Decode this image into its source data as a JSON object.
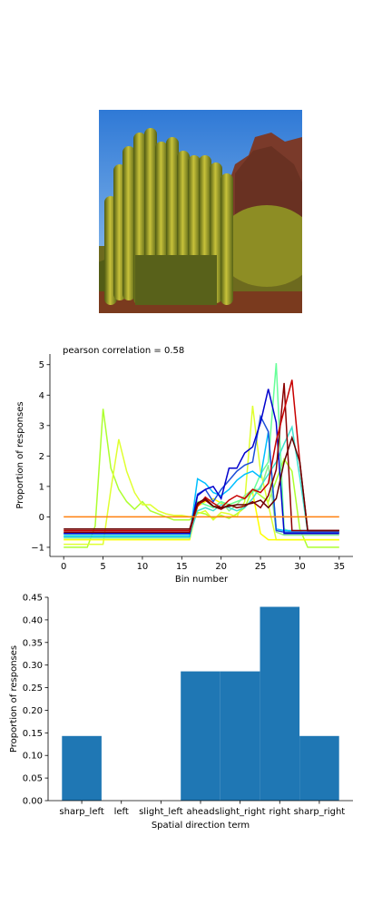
{
  "image": {
    "subject": "organ-pipe-cactus-photo"
  },
  "chart_data": [
    {
      "type": "line",
      "title": "pearson correlation = 0.58",
      "xlabel": "Bin number",
      "ylabel": "Proportion of responses",
      "xlim": [
        -1.75,
        36.75
      ],
      "ylim": [
        -1.3,
        5.35
      ],
      "xticks": [
        0,
        5,
        10,
        15,
        20,
        25,
        30,
        35
      ],
      "yticks": [
        -1,
        0,
        1,
        2,
        3,
        4,
        5
      ],
      "grid": false,
      "legend": "none",
      "x": [
        0,
        1,
        2,
        3,
        4,
        5,
        6,
        7,
        8,
        9,
        10,
        11,
        12,
        13,
        14,
        15,
        16,
        17,
        18,
        19,
        20,
        21,
        22,
        23,
        24,
        25,
        26,
        27,
        28,
        29,
        30,
        31,
        32,
        33,
        34,
        35
      ],
      "series": [
        {
          "color": "#adff2f",
          "values": [
            -1,
            -1,
            -1,
            -1,
            -0.3,
            3.55,
            1.6,
            0.9,
            0.5,
            0.25,
            0.5,
            0.2,
            0.1,
            0,
            -0.1,
            -0.1,
            -0.1,
            0.15,
            0.1,
            -0.05,
            0.05,
            -0.05,
            0.1,
            0.3,
            0.9,
            0.7,
            0.5,
            1.2,
            1.9,
            1.5,
            -0.4,
            -1,
            -1,
            -1,
            -1,
            -1
          ]
        },
        {
          "color": "#e0ff30",
          "values": [
            -0.9,
            -0.9,
            -0.9,
            -0.9,
            -0.9,
            -0.9,
            0.9,
            2.55,
            1.5,
            0.8,
            0.4,
            0.4,
            0.2,
            0.1,
            0.05,
            0.05,
            0,
            0.1,
            0.2,
            -0.1,
            0.15,
            0.1,
            0,
            0.5,
            3.65,
            1.5,
            0.4,
            -0.75,
            -0.75,
            -0.75,
            -0.75,
            -0.75,
            -0.75,
            -0.75,
            -0.75,
            -0.75
          ]
        },
        {
          "color": "#ffff00",
          "values": [
            -0.75,
            -0.75,
            -0.75,
            -0.75,
            -0.75,
            -0.75,
            -0.75,
            -0.75,
            -0.75,
            -0.75,
            -0.75,
            -0.75,
            -0.75,
            -0.75,
            -0.75,
            -0.75,
            -0.75,
            0.35,
            0.5,
            0.6,
            0.45,
            0.4,
            0.5,
            0.6,
            0.8,
            -0.55,
            -0.75,
            -0.75,
            -0.75,
            -0.75,
            -0.75,
            -0.75,
            -0.75,
            -0.75,
            -0.75,
            -0.75
          ]
        },
        {
          "color": "#90ee90",
          "values": [
            -0.7,
            -0.7,
            -0.7,
            -0.7,
            -0.7,
            -0.7,
            -0.7,
            -0.7,
            -0.7,
            -0.7,
            -0.7,
            -0.7,
            -0.7,
            -0.7,
            -0.7,
            -0.7,
            -0.7,
            0.4,
            0.6,
            0.3,
            0.5,
            0.2,
            0.4,
            0.7,
            0.9,
            0.9,
            1.7,
            -0.5,
            -0.6,
            -0.6,
            -0.6,
            -0.6,
            -0.6,
            -0.6,
            -0.6,
            -0.6
          ]
        },
        {
          "color": "#66ff99",
          "values": [
            -0.65,
            -0.65,
            -0.65,
            -0.65,
            -0.65,
            -0.65,
            -0.65,
            -0.65,
            -0.65,
            -0.65,
            -0.65,
            -0.65,
            -0.65,
            -0.65,
            -0.65,
            -0.65,
            -0.65,
            0.5,
            0.4,
            0.3,
            0.5,
            0.4,
            0.5,
            0.6,
            0.8,
            1.4,
            1.8,
            5.05,
            -0.4,
            -0.5,
            -0.5,
            -0.5,
            -0.5,
            -0.5,
            -0.5,
            -0.5
          ]
        },
        {
          "color": "#40e0d0",
          "values": [
            -0.6,
            -0.6,
            -0.6,
            -0.6,
            -0.6,
            -0.6,
            -0.6,
            -0.6,
            -0.6,
            -0.6,
            -0.6,
            -0.6,
            -0.6,
            -0.6,
            -0.6,
            -0.6,
            -0.6,
            0.2,
            0.3,
            0.2,
            0.4,
            0.3,
            0.2,
            0.3,
            0.6,
            1,
            1.4,
            1.8,
            2.4,
            2.95,
            1.3,
            -0.5,
            -0.5,
            -0.5,
            -0.5,
            -0.5
          ]
        },
        {
          "color": "#00bfff",
          "values": [
            -0.65,
            -0.65,
            -0.65,
            -0.65,
            -0.65,
            -0.65,
            -0.65,
            -0.65,
            -0.65,
            -0.65,
            -0.65,
            -0.65,
            -0.65,
            -0.65,
            -0.65,
            -0.65,
            -0.65,
            1.25,
            1.1,
            0.8,
            0.7,
            0.9,
            1.2,
            1.4,
            1.5,
            1.3,
            2.8,
            -0.4,
            -0.45,
            -0.45,
            -0.45,
            -0.45,
            -0.45,
            -0.45,
            -0.45,
            -0.45
          ]
        },
        {
          "color": "#1e4fd8",
          "values": [
            -0.55,
            -0.55,
            -0.55,
            -0.55,
            -0.55,
            -0.55,
            -0.55,
            -0.55,
            -0.55,
            -0.55,
            -0.55,
            -0.55,
            -0.55,
            -0.55,
            -0.55,
            -0.55,
            -0.55,
            0.75,
            0.9,
            0.5,
            0.9,
            1.2,
            1.5,
            1.7,
            1.8,
            3.3,
            2.8,
            -0.45,
            -0.5,
            -0.5,
            -0.5,
            -0.5,
            -0.5,
            -0.5,
            -0.5,
            -0.5
          ]
        },
        {
          "color": "#0000cd",
          "values": [
            -0.55,
            -0.55,
            -0.55,
            -0.55,
            -0.55,
            -0.55,
            -0.55,
            -0.55,
            -0.55,
            -0.55,
            -0.55,
            -0.55,
            -0.55,
            -0.55,
            -0.55,
            -0.55,
            -0.55,
            0.7,
            0.9,
            1,
            0.6,
            1.6,
            1.6,
            2.1,
            2.3,
            3.1,
            4.2,
            3.1,
            -0.55,
            -0.55,
            -0.55,
            -0.55,
            -0.55,
            -0.55,
            -0.55,
            -0.55
          ]
        },
        {
          "color": "#8b0000",
          "values": [
            -0.5,
            -0.5,
            -0.5,
            -0.5,
            -0.5,
            -0.5,
            -0.5,
            -0.5,
            -0.5,
            -0.5,
            -0.5,
            -0.5,
            -0.5,
            -0.5,
            -0.5,
            -0.5,
            -0.5,
            0.4,
            0.55,
            0.35,
            0.25,
            0.4,
            0.3,
            0.35,
            0.5,
            0.3,
            0.7,
            1.55,
            4.4,
            -0.45,
            -0.45,
            -0.45,
            -0.45,
            -0.45,
            -0.45,
            -0.45
          ]
        },
        {
          "color": "#c80000",
          "values": [
            -0.45,
            -0.45,
            -0.45,
            -0.45,
            -0.45,
            -0.45,
            -0.45,
            -0.45,
            -0.45,
            -0.45,
            -0.45,
            -0.45,
            -0.45,
            -0.45,
            -0.45,
            -0.45,
            -0.45,
            0.35,
            0.65,
            0.45,
            0.3,
            0.55,
            0.7,
            0.6,
            0.9,
            0.8,
            1.1,
            2.5,
            3.5,
            4.5,
            1.8,
            -0.45,
            -0.45,
            -0.45,
            -0.45,
            -0.45
          ]
        },
        {
          "color": "#660000",
          "values": [
            -0.4,
            -0.4,
            -0.4,
            -0.4,
            -0.4,
            -0.4,
            -0.4,
            -0.4,
            -0.4,
            -0.4,
            -0.4,
            -0.4,
            -0.4,
            -0.4,
            -0.4,
            -0.4,
            -0.4,
            0.45,
            0.6,
            0.35,
            0.3,
            0.35,
            0.4,
            0.4,
            0.45,
            0.55,
            0.3,
            0.6,
            1.8,
            2.6,
            1.8,
            -0.45,
            -0.45,
            -0.45,
            -0.45,
            -0.45
          ]
        },
        {
          "color": "#ff7f0e",
          "values": [
            0,
            0,
            0,
            0,
            0,
            0,
            0,
            0,
            0,
            0,
            0,
            0,
            0,
            0,
            0,
            0,
            0,
            0,
            0,
            0,
            0,
            0,
            0,
            0,
            0,
            0,
            0,
            0,
            0,
            0,
            0,
            0,
            0,
            0,
            0,
            0
          ]
        }
      ]
    },
    {
      "type": "bar",
      "xlabel": "Spatial direction term",
      "ylabel": "Proportion of responses",
      "categories": [
        "sharp_left",
        "left",
        "slight_left",
        "ahead",
        "slight_right",
        "right",
        "sharp_right"
      ],
      "values": [
        0.143,
        0,
        0,
        0.286,
        0.286,
        0.429,
        0.143
      ],
      "ylim": [
        0,
        0.45
      ],
      "yticks": [
        "0.00",
        "0.05",
        "0.10",
        "0.15",
        "0.20",
        "0.25",
        "0.30",
        "0.35",
        "0.40",
        "0.45"
      ],
      "color": "#1f77b4",
      "grid": false,
      "legend": "none"
    }
  ]
}
